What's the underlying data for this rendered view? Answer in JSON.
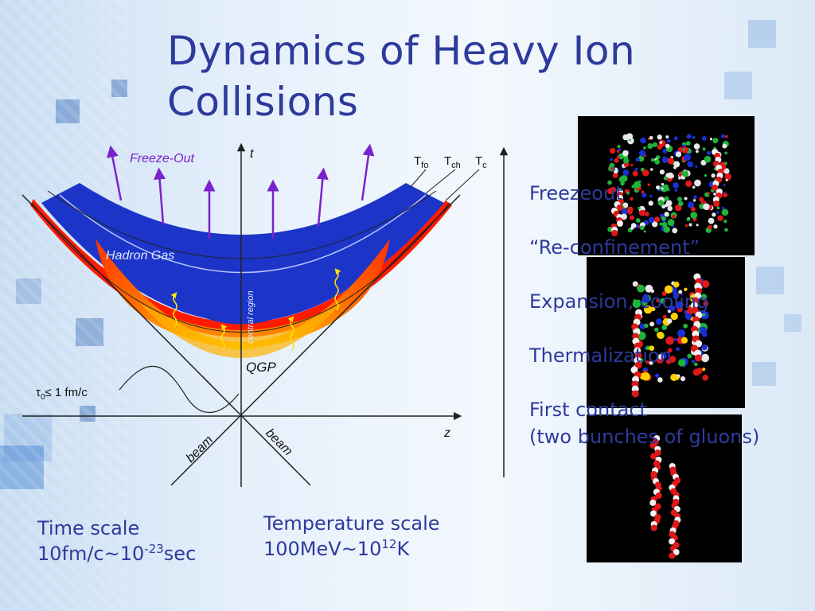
{
  "slide": {
    "title": "Dynamics of Heavy Ion Collisions",
    "title_line1": "Dynamics of Heavy Ion",
    "title_line2": "Collisions"
  },
  "diagram": {
    "freeze_out": "Freeze-Out",
    "t_axis": "t",
    "z_axis": "z",
    "t_fo": "T",
    "t_fo_sub": "fo",
    "t_ch": "T",
    "t_ch_sub": "ch",
    "t_c": "T",
    "t_c_sub": "c",
    "hadron_gas": "Hadron Gas",
    "central_region": "central region",
    "qgp": "QGP",
    "tau_label": "τ",
    "tau_sub": "0",
    "tau_value": "≤ 1 fm/c",
    "beam_left": "beam",
    "beam_right": "beam"
  },
  "stages": [
    {
      "label": "Freezeout"
    },
    {
      "label": "“Re-confinement”"
    },
    {
      "label": "Expansion, cooling"
    },
    {
      "label": "Thermalization"
    },
    {
      "label": "First contact"
    },
    {
      "label": "(two bunches of gluons)"
    }
  ],
  "time_scale": {
    "line1": "Time scale",
    "line2_pre": "10fm/c~10",
    "line2_sup": "-23",
    "line2_post": "sec"
  },
  "temperature_scale": {
    "line1": "Temperature scale",
    "line2_pre": "100MeV~10",
    "line2_sup": "12",
    "line2_post": "K"
  },
  "colors": {
    "text": "#2e3a9c",
    "hadron_gas": "#1c35c8",
    "qgp_hot": "#ffe000",
    "qgp_edge": "#ff3b00",
    "arrow": "#7b22cc"
  }
}
